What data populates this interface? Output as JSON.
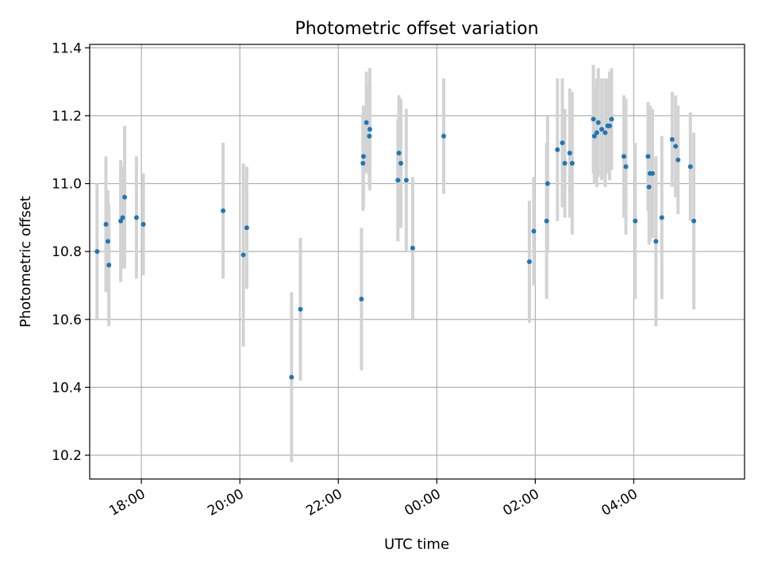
{
  "chart_data": {
    "type": "scatter",
    "title": "Photometric offset variation",
    "xlabel": "UTC time",
    "ylabel": "Photometric offset",
    "x_unit": "hours since 00:00 UTC",
    "xlim": [
      -7.05,
      6.25
    ],
    "ylim": [
      10.13,
      11.41
    ],
    "grid": true,
    "x_ticks": [
      {
        "value": -6,
        "label": "18:00"
      },
      {
        "value": -4,
        "label": "20:00"
      },
      {
        "value": -2,
        "label": "22:00"
      },
      {
        "value": 0,
        "label": "00:00"
      },
      {
        "value": 2,
        "label": "02:00"
      },
      {
        "value": 4,
        "label": "04:00"
      }
    ],
    "y_ticks": [
      {
        "value": 10.2,
        "label": "10.2"
      },
      {
        "value": 10.4,
        "label": "10.4"
      },
      {
        "value": 10.6,
        "label": "10.6"
      },
      {
        "value": 10.8,
        "label": "10.8"
      },
      {
        "value": 11.0,
        "label": "11.0"
      },
      {
        "value": 11.2,
        "label": "11.2"
      },
      {
        "value": 11.4,
        "label": "11.4"
      }
    ],
    "marker_color": "#1f77b4",
    "errorbar_color": "#d3d3d3",
    "points": [
      {
        "x": -6.9,
        "y": 10.8,
        "err": 0.2
      },
      {
        "x": -6.72,
        "y": 10.88,
        "err": 0.2
      },
      {
        "x": -6.68,
        "y": 10.83,
        "err": 0.15
      },
      {
        "x": -6.66,
        "y": 10.76,
        "err": 0.18
      },
      {
        "x": -6.42,
        "y": 10.89,
        "err": 0.18
      },
      {
        "x": -6.38,
        "y": 10.9,
        "err": 0.15
      },
      {
        "x": -6.34,
        "y": 10.96,
        "err": 0.21
      },
      {
        "x": -6.1,
        "y": 10.9,
        "err": 0.18
      },
      {
        "x": -5.96,
        "y": 10.88,
        "err": 0.15
      },
      {
        "x": -4.34,
        "y": 10.92,
        "err": 0.2
      },
      {
        "x": -3.93,
        "y": 10.79,
        "err": 0.27
      },
      {
        "x": -3.86,
        "y": 10.87,
        "err": 0.18
      },
      {
        "x": -2.95,
        "y": 10.43,
        "err": 0.25
      },
      {
        "x": -2.77,
        "y": 10.63,
        "err": 0.21
      },
      {
        "x": -1.53,
        "y": 10.66,
        "err": 0.21
      },
      {
        "x": -1.5,
        "y": 11.06,
        "err": 0.14
      },
      {
        "x": -1.49,
        "y": 11.08,
        "err": 0.15
      },
      {
        "x": -1.43,
        "y": 11.18,
        "err": 0.15
      },
      {
        "x": -1.37,
        "y": 11.14,
        "err": 0.15
      },
      {
        "x": -1.36,
        "y": 11.16,
        "err": 0.18
      },
      {
        "x": -0.79,
        "y": 11.01,
        "err": 0.18
      },
      {
        "x": -0.77,
        "y": 11.09,
        "err": 0.17
      },
      {
        "x": -0.73,
        "y": 11.06,
        "err": 0.19
      },
      {
        "x": -0.62,
        "y": 11.01,
        "err": 0.21
      },
      {
        "x": -0.49,
        "y": 10.81,
        "err": 0.21
      },
      {
        "x": 0.14,
        "y": 11.14,
        "err": 0.17
      },
      {
        "x": 1.88,
        "y": 10.77,
        "err": 0.18
      },
      {
        "x": 1.97,
        "y": 10.86,
        "err": 0.16
      },
      {
        "x": 2.23,
        "y": 10.89,
        "err": 0.23
      },
      {
        "x": 2.25,
        "y": 11.0,
        "err": 0.2
      },
      {
        "x": 2.45,
        "y": 11.1,
        "err": 0.21
      },
      {
        "x": 2.55,
        "y": 11.12,
        "err": 0.19
      },
      {
        "x": 2.6,
        "y": 11.06,
        "err": 0.16
      },
      {
        "x": 2.7,
        "y": 11.09,
        "err": 0.19
      },
      {
        "x": 2.75,
        "y": 11.06,
        "err": 0.21
      },
      {
        "x": 3.18,
        "y": 11.19,
        "err": 0.16
      },
      {
        "x": 3.2,
        "y": 11.14,
        "err": 0.14
      },
      {
        "x": 3.25,
        "y": 11.15,
        "err": 0.16
      },
      {
        "x": 3.28,
        "y": 11.18,
        "err": 0.16
      },
      {
        "x": 3.35,
        "y": 11.16,
        "err": 0.15
      },
      {
        "x": 3.42,
        "y": 11.15,
        "err": 0.16
      },
      {
        "x": 3.47,
        "y": 11.17,
        "err": 0.14
      },
      {
        "x": 3.51,
        "y": 11.17,
        "err": 0.16
      },
      {
        "x": 3.55,
        "y": 11.19,
        "err": 0.15
      },
      {
        "x": 3.8,
        "y": 11.08,
        "err": 0.18
      },
      {
        "x": 3.84,
        "y": 11.05,
        "err": 0.2
      },
      {
        "x": 4.03,
        "y": 10.89,
        "err": 0.23
      },
      {
        "x": 4.29,
        "y": 11.08,
        "err": 0.16
      },
      {
        "x": 4.31,
        "y": 10.99,
        "err": 0.17
      },
      {
        "x": 4.33,
        "y": 11.03,
        "err": 0.2
      },
      {
        "x": 4.38,
        "y": 11.03,
        "err": 0.19
      },
      {
        "x": 4.45,
        "y": 10.83,
        "err": 0.25
      },
      {
        "x": 4.57,
        "y": 10.9,
        "err": 0.24
      },
      {
        "x": 4.78,
        "y": 11.13,
        "err": 0.14
      },
      {
        "x": 4.85,
        "y": 11.11,
        "err": 0.15
      },
      {
        "x": 4.9,
        "y": 11.07,
        "err": 0.16
      },
      {
        "x": 5.15,
        "y": 11.05,
        "err": 0.16
      },
      {
        "x": 5.22,
        "y": 10.89,
        "err": 0.26
      }
    ]
  }
}
